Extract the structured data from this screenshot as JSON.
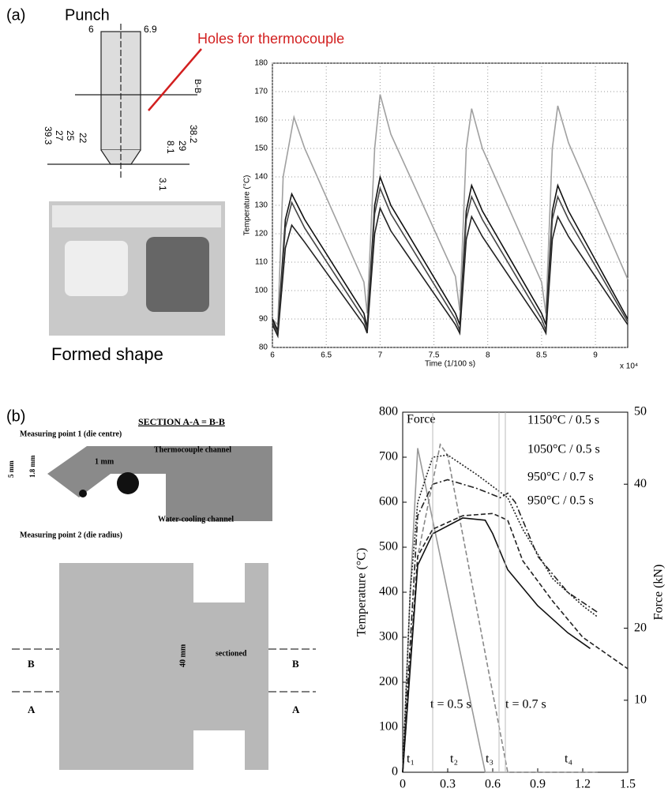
{
  "panel_a": {
    "label": "(a)",
    "title": "Punch",
    "callout": "Holes for thermocouple",
    "caption": "Formed shape",
    "dims": [
      "6",
      "6.9",
      "39.3",
      "27",
      "25",
      "22",
      "38.2",
      "29",
      "8.1",
      "3.1",
      "B-B"
    ]
  },
  "panel_b": {
    "label": "(b)",
    "section": "SECTION A-A = B-B",
    "point1": "Measuring point 1 (die centre)",
    "channel": "Thermocouple channel",
    "mm1": "1 mm",
    "mm5": "5 mm",
    "mm18": "1.8 mm",
    "water": "Water-cooling channel",
    "point2": "Measuring point 2 (die radius)",
    "sectioned": "sectioned",
    "mm40": "40 mm",
    "cuts": [
      "B",
      "A",
      "B",
      "A"
    ]
  },
  "chart_data": [
    {
      "type": "line",
      "xlabel": "Time (1/100 s)",
      "ylabel": "Temperature (°C)",
      "multiplier": "x 10⁴",
      "xlim": [
        6,
        9.3
      ],
      "xticks": [
        6,
        6.5,
        7,
        7.5,
        8,
        8.5,
        9
      ],
      "ylim": [
        80,
        180
      ],
      "yticks": [
        80,
        90,
        100,
        110,
        120,
        130,
        140,
        150,
        160,
        170,
        180
      ],
      "grid": true,
      "series": [
        {
          "color": "#a0a0a0",
          "style": "solid",
          "x": [
            6,
            6.05,
            6.1,
            6.2,
            6.3,
            6.85,
            6.88,
            6.95,
            7.0,
            7.1,
            7.7,
            7.74,
            7.8,
            7.85,
            7.95,
            8.5,
            8.54,
            8.6,
            8.65,
            8.75,
            9.3
          ],
          "values": [
            90,
            88,
            140,
            161,
            150,
            103,
            92,
            150,
            169,
            155,
            105,
            93,
            150,
            164,
            150,
            103,
            92,
            150,
            165,
            152,
            104
          ]
        },
        {
          "color": "#111111",
          "style": "solid",
          "x": [
            6,
            6.05,
            6.12,
            6.18,
            6.3,
            6.85,
            6.88,
            6.95,
            7.0,
            7.1,
            7.7,
            7.74,
            7.8,
            7.85,
            7.95,
            8.5,
            8.54,
            8.6,
            8.65,
            8.75,
            9.3
          ],
          "values": [
            90,
            86,
            125,
            134,
            125,
            92,
            87,
            130,
            140,
            130,
            92,
            88,
            128,
            137,
            128,
            92,
            88,
            128,
            137,
            128,
            90
          ]
        },
        {
          "color": "#444444",
          "style": "solid",
          "x": [
            6,
            6.05,
            6.12,
            6.18,
            6.3,
            6.85,
            6.88,
            6.95,
            7.0,
            7.1,
            7.7,
            7.74,
            7.8,
            7.85,
            7.95,
            8.5,
            8.54,
            8.6,
            8.65,
            8.75,
            9.3
          ],
          "values": [
            89,
            85,
            122,
            131,
            122,
            90,
            86,
            127,
            136,
            127,
            90,
            86,
            125,
            133,
            125,
            90,
            86,
            125,
            133,
            125,
            89
          ]
        },
        {
          "color": "#222222",
          "style": "solid",
          "x": [
            6,
            6.05,
            6.12,
            6.18,
            6.3,
            6.85,
            6.88,
            6.95,
            7.0,
            7.1,
            7.7,
            7.74,
            7.8,
            7.85,
            7.95,
            8.5,
            8.54,
            8.6,
            8.65,
            8.75,
            9.3
          ],
          "values": [
            88,
            84,
            115,
            123,
            117,
            88,
            85,
            120,
            129,
            121,
            88,
            85,
            118,
            126,
            119,
            88,
            85,
            118,
            126,
            119,
            88
          ]
        }
      ]
    },
    {
      "type": "line",
      "xlabel": "Time (s)",
      "ylabel": "Temperature (°C)",
      "y2label": "Force (kN)",
      "xlim": [
        0,
        1.5
      ],
      "xticks": [
        0,
        0.3,
        0.6,
        0.9,
        1.2,
        1.5
      ],
      "ylim": [
        0,
        800
      ],
      "yticks": [
        0,
        100,
        200,
        300,
        400,
        500,
        600,
        700,
        800
      ],
      "y2lim": [
        0,
        50
      ],
      "y2ticks": [
        10,
        20,
        40,
        50
      ],
      "grid": false,
      "annotations": [
        "Force",
        "1150°C / 0.5 s",
        "1050°C / 0.5 s",
        "950°C / 0.7 s",
        "950°C / 0.5 s",
        "t = 0.5 s",
        "t = 0.7 s",
        "t₁",
        "t₂",
        "t₃",
        "t₄"
      ],
      "series": [
        {
          "color": "#999999",
          "style": "solid",
          "axis": "y2",
          "x": [
            0,
            0.05,
            0.1,
            0.15,
            0.55,
            1.3
          ],
          "values": [
            0,
            25,
            45,
            40,
            0,
            0
          ]
        },
        {
          "color": "#888888",
          "style": "dashed",
          "axis": "y2",
          "x": [
            0,
            0.1,
            0.25,
            0.3,
            0.7,
            1.3
          ],
          "values": [
            0,
            30,
            45.5,
            44,
            0,
            0
          ]
        },
        {
          "color": "#222222",
          "style": "dotted",
          "x": [
            0,
            0.05,
            0.1,
            0.2,
            0.3,
            0.5,
            0.7,
            0.8,
            1.0,
            1.2,
            1.3
          ],
          "values": [
            0,
            400,
            600,
            700,
            705,
            660,
            610,
            540,
            430,
            370,
            345
          ]
        },
        {
          "color": "#222222",
          "style": "dashdot",
          "x": [
            0,
            0.1,
            0.2,
            0.3,
            0.5,
            0.65,
            0.7,
            0.75,
            0.9,
            1.1,
            1.3
          ],
          "values": [
            0,
            570,
            640,
            650,
            630,
            610,
            620,
            600,
            480,
            400,
            355
          ]
        },
        {
          "color": "#222222",
          "style": "dashed",
          "x": [
            0,
            0.1,
            0.2,
            0.4,
            0.6,
            0.7,
            0.8,
            1.0,
            1.2,
            1.5
          ],
          "values": [
            0,
            480,
            540,
            570,
            575,
            560,
            470,
            380,
            300,
            230
          ]
        },
        {
          "color": "#111111",
          "style": "solid",
          "x": [
            0,
            0.1,
            0.2,
            0.4,
            0.55,
            0.6,
            0.7,
            0.9,
            1.1,
            1.25
          ],
          "values": [
            0,
            460,
            530,
            565,
            560,
            530,
            450,
            370,
            310,
            275
          ]
        }
      ]
    }
  ]
}
